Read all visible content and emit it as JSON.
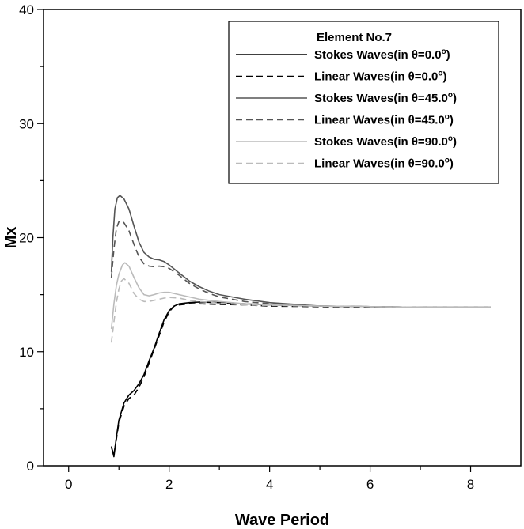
{
  "chart_data": {
    "type": "line",
    "title": "",
    "xlabel": "Wave Period",
    "ylabel": "Mx",
    "xlim": [
      -0.5,
      9
    ],
    "ylim": [
      0,
      40
    ],
    "x_ticks": [
      "0",
      "2",
      "4",
      "6",
      "8"
    ],
    "y_ticks": [
      "0",
      "10",
      "20",
      "30",
      "40"
    ],
    "grid": false,
    "legend": {
      "placement": "top-right",
      "title": "Element No.7"
    },
    "series": [
      {
        "name_main": "Stokes Waves(in ",
        "name_sym": "θ=0.0",
        "name_sup": "o",
        "name_end": ")",
        "color": "#000000",
        "dash": "solid",
        "points": [
          [
            0.85,
            1.7
          ],
          [
            0.9,
            0.8
          ],
          [
            0.95,
            2.5
          ],
          [
            1.0,
            4.0
          ],
          [
            1.1,
            5.5
          ],
          [
            1.2,
            6.2
          ],
          [
            1.3,
            6.6
          ],
          [
            1.4,
            7.2
          ],
          [
            1.5,
            8.0
          ],
          [
            1.6,
            9.2
          ],
          [
            1.7,
            10.3
          ],
          [
            1.8,
            11.6
          ],
          [
            1.9,
            12.8
          ],
          [
            2.0,
            13.6
          ],
          [
            2.1,
            14.0
          ],
          [
            2.2,
            14.2
          ],
          [
            2.4,
            14.3
          ],
          [
            2.6,
            14.35
          ],
          [
            3.0,
            14.3
          ],
          [
            3.5,
            14.2
          ],
          [
            4.0,
            14.1
          ],
          [
            5.0,
            14.0
          ],
          [
            6.0,
            13.95
          ],
          [
            7.0,
            13.9
          ],
          [
            8.0,
            13.9
          ],
          [
            8.4,
            13.9
          ]
        ]
      },
      {
        "name_main": "Linear Waves(in ",
        "name_sym": "θ=0.0",
        "name_sup": "o",
        "name_end": ")",
        "color": "#000000",
        "dash": "dashed",
        "points": [
          [
            0.85,
            1.6
          ],
          [
            0.9,
            1.0
          ],
          [
            0.95,
            2.3
          ],
          [
            1.0,
            3.8
          ],
          [
            1.1,
            5.2
          ],
          [
            1.2,
            5.9
          ],
          [
            1.3,
            6.2
          ],
          [
            1.4,
            6.9
          ],
          [
            1.5,
            7.8
          ],
          [
            1.6,
            9.0
          ],
          [
            1.7,
            10.2
          ],
          [
            1.8,
            11.4
          ],
          [
            1.9,
            12.6
          ],
          [
            2.0,
            13.5
          ],
          [
            2.1,
            14.0
          ],
          [
            2.2,
            14.1
          ],
          [
            2.4,
            14.2
          ],
          [
            2.6,
            14.2
          ],
          [
            3.0,
            14.15
          ],
          [
            3.5,
            14.1
          ],
          [
            4.0,
            14.0
          ],
          [
            5.0,
            13.95
          ],
          [
            6.0,
            13.9
          ],
          [
            7.0,
            13.9
          ],
          [
            8.0,
            13.85
          ],
          [
            8.4,
            13.85
          ]
        ]
      },
      {
        "name_main": "Stokes Waves(in ",
        "name_sym": "θ=45.0",
        "name_sup": "o",
        "name_end": ")",
        "color": "#555555",
        "dash": "solid",
        "points": [
          [
            0.85,
            17.0
          ],
          [
            0.88,
            20.0
          ],
          [
            0.92,
            22.5
          ],
          [
            0.97,
            23.5
          ],
          [
            1.02,
            23.7
          ],
          [
            1.1,
            23.4
          ],
          [
            1.2,
            22.5
          ],
          [
            1.3,
            21.0
          ],
          [
            1.4,
            19.6
          ],
          [
            1.5,
            18.7
          ],
          [
            1.6,
            18.3
          ],
          [
            1.7,
            18.1
          ],
          [
            1.8,
            18.05
          ],
          [
            1.9,
            17.9
          ],
          [
            2.0,
            17.6
          ],
          [
            2.2,
            16.9
          ],
          [
            2.4,
            16.2
          ],
          [
            2.6,
            15.7
          ],
          [
            2.8,
            15.3
          ],
          [
            3.0,
            15.0
          ],
          [
            3.5,
            14.6
          ],
          [
            4.0,
            14.3
          ],
          [
            5.0,
            14.0
          ],
          [
            6.0,
            13.95
          ],
          [
            7.0,
            13.9
          ],
          [
            8.0,
            13.9
          ],
          [
            8.4,
            13.9
          ]
        ]
      },
      {
        "name_main": "Linear Waves(in ",
        "name_sym": "θ=45.0",
        "name_sup": "o",
        "name_end": ")",
        "color": "#555555",
        "dash": "dashed",
        "points": [
          [
            0.85,
            16.5
          ],
          [
            0.9,
            19.0
          ],
          [
            0.95,
            20.8
          ],
          [
            1.0,
            21.4
          ],
          [
            1.05,
            21.5
          ],
          [
            1.1,
            21.3
          ],
          [
            1.2,
            20.6
          ],
          [
            1.3,
            19.4
          ],
          [
            1.4,
            18.3
          ],
          [
            1.5,
            17.7
          ],
          [
            1.6,
            17.5
          ],
          [
            1.7,
            17.45
          ],
          [
            1.8,
            17.5
          ],
          [
            1.9,
            17.45
          ],
          [
            2.0,
            17.3
          ],
          [
            2.2,
            16.7
          ],
          [
            2.4,
            16.0
          ],
          [
            2.6,
            15.5
          ],
          [
            2.8,
            15.1
          ],
          [
            3.0,
            14.8
          ],
          [
            3.5,
            14.4
          ],
          [
            4.0,
            14.2
          ],
          [
            5.0,
            14.0
          ],
          [
            6.0,
            13.95
          ],
          [
            7.0,
            13.9
          ],
          [
            8.0,
            13.9
          ],
          [
            8.4,
            13.9
          ]
        ]
      },
      {
        "name_main": "Stokes Waves(in ",
        "name_sym": "θ=90.0",
        "name_sup": "o",
        "name_end": ")",
        "color": "#bbbbbb",
        "dash": "solid",
        "points": [
          [
            0.85,
            12.0
          ],
          [
            0.9,
            14.2
          ],
          [
            0.95,
            15.8
          ],
          [
            1.0,
            16.8
          ],
          [
            1.07,
            17.6
          ],
          [
            1.12,
            17.8
          ],
          [
            1.2,
            17.5
          ],
          [
            1.3,
            16.5
          ],
          [
            1.4,
            15.6
          ],
          [
            1.5,
            15.0
          ],
          [
            1.6,
            14.9
          ],
          [
            1.7,
            15.0
          ],
          [
            1.8,
            15.15
          ],
          [
            1.9,
            15.2
          ],
          [
            2.0,
            15.2
          ],
          [
            2.2,
            15.0
          ],
          [
            2.4,
            14.8
          ],
          [
            2.6,
            14.6
          ],
          [
            3.0,
            14.4
          ],
          [
            3.5,
            14.2
          ],
          [
            4.0,
            14.1
          ],
          [
            5.0,
            14.0
          ],
          [
            6.0,
            13.95
          ],
          [
            7.0,
            13.9
          ],
          [
            8.0,
            13.9
          ],
          [
            8.4,
            13.9
          ]
        ]
      },
      {
        "name_main": "Linear Waves(in ",
        "name_sym": "θ=90.0",
        "name_sup": "o",
        "name_end": ")",
        "color": "#bbbbbb",
        "dash": "dashed",
        "points": [
          [
            0.85,
            10.8
          ],
          [
            0.9,
            12.6
          ],
          [
            0.95,
            14.3
          ],
          [
            1.0,
            15.5
          ],
          [
            1.05,
            16.2
          ],
          [
            1.1,
            16.4
          ],
          [
            1.2,
            16.0
          ],
          [
            1.3,
            15.1
          ],
          [
            1.4,
            14.6
          ],
          [
            1.5,
            14.4
          ],
          [
            1.6,
            14.4
          ],
          [
            1.7,
            14.5
          ],
          [
            1.8,
            14.6
          ],
          [
            1.9,
            14.7
          ],
          [
            2.0,
            14.75
          ],
          [
            2.2,
            14.7
          ],
          [
            2.4,
            14.5
          ],
          [
            2.6,
            14.4
          ],
          [
            3.0,
            14.25
          ],
          [
            3.5,
            14.1
          ],
          [
            4.0,
            14.05
          ],
          [
            5.0,
            14.0
          ],
          [
            6.0,
            13.95
          ],
          [
            7.0,
            13.9
          ],
          [
            8.0,
            13.9
          ],
          [
            8.4,
            13.9
          ]
        ]
      }
    ]
  }
}
